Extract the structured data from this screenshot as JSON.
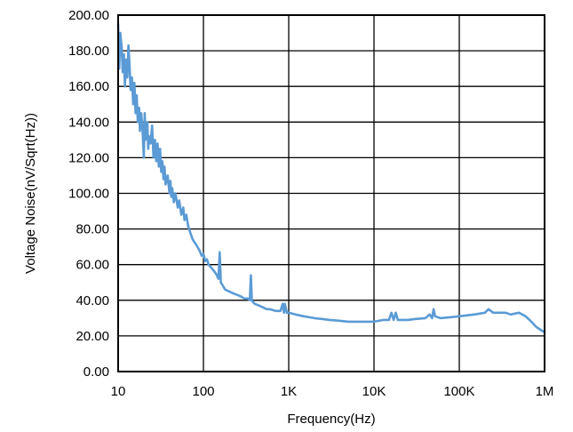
{
  "chart_data": {
    "type": "line",
    "title": "",
    "xlabel": "Frequency(Hz)",
    "ylabel": "Voltage Noise(nV/Sqrt(Hz))",
    "x_scale": "log",
    "xlim": [
      10,
      1000000
    ],
    "ylim": [
      0,
      200
    ],
    "grid": true,
    "legend": "none",
    "x_ticks": [
      {
        "value": 10,
        "label": "10"
      },
      {
        "value": 100,
        "label": "100"
      },
      {
        "value": 1000,
        "label": "1K"
      },
      {
        "value": 10000,
        "label": "10K"
      },
      {
        "value": 100000,
        "label": "100K"
      },
      {
        "value": 1000000,
        "label": "1M"
      }
    ],
    "y_ticks": [
      {
        "value": 0,
        "label": "0.00"
      },
      {
        "value": 20,
        "label": "20.00"
      },
      {
        "value": 40,
        "label": "40.00"
      },
      {
        "value": 60,
        "label": "60.00"
      },
      {
        "value": 80,
        "label": "80.00"
      },
      {
        "value": 100,
        "label": "100.00"
      },
      {
        "value": 120,
        "label": "120.00"
      },
      {
        "value": 140,
        "label": "140.00"
      },
      {
        "value": 160,
        "label": "160.00"
      },
      {
        "value": 180,
        "label": "180.00"
      },
      {
        "value": 200,
        "label": "200.00"
      }
    ],
    "series": [
      {
        "color": "#5b9bd5",
        "x": [
          10,
          10.3,
          10.6,
          11,
          11.3,
          11.7,
          12,
          12.4,
          12.8,
          13.2,
          13.6,
          14,
          14.5,
          15,
          15.5,
          16,
          16.5,
          17,
          17.6,
          18,
          18.6,
          19.2,
          20,
          20.5,
          21,
          22,
          22.5,
          23,
          24,
          25,
          26,
          27,
          28,
          29,
          30,
          31,
          32,
          33,
          34,
          35,
          36,
          38,
          40,
          41,
          42,
          43,
          45,
          47,
          50,
          52,
          55,
          58,
          60,
          63,
          66,
          70,
          75,
          80,
          85,
          90,
          95,
          100,
          105,
          110,
          115,
          120,
          130,
          140,
          150,
          155,
          160,
          170,
          180,
          200,
          220,
          250,
          280,
          300,
          330,
          350,
          360,
          370,
          380,
          400,
          450,
          500,
          550,
          600,
          700,
          800,
          850,
          880,
          900,
          950,
          1000,
          1200,
          1500,
          2000,
          2500,
          3000,
          4000,
          5000,
          7000,
          10000,
          13000,
          15000,
          16000,
          17000,
          18000,
          19000,
          20000,
          25000,
          30000,
          40000,
          45000,
          48000,
          50000,
          52000,
          60000,
          80000,
          100000,
          150000,
          200000,
          220000,
          250000,
          300000,
          350000,
          400000,
          500000,
          600000,
          700000,
          800000,
          1000000
        ],
        "y": [
          195,
          170,
          190,
          182,
          168,
          178,
          160,
          175,
          165,
          183,
          172,
          158,
          165,
          150,
          162,
          145,
          155,
          140,
          148,
          135,
          145,
          138,
          120,
          145,
          130,
          140,
          125,
          132,
          128,
          138,
          120,
          130,
          118,
          128,
          115,
          125,
          112,
          118,
          108,
          115,
          105,
          110,
          100,
          107,
          98,
          103,
          95,
          100,
          92,
          96,
          88,
          92,
          85,
          88,
          82,
          78,
          74,
          72,
          70,
          68,
          65,
          66,
          62,
          63,
          60,
          59,
          57,
          55,
          52,
          67,
          50,
          48,
          46,
          45,
          44,
          43,
          42,
          41,
          41,
          40,
          54,
          40,
          39,
          38,
          37,
          36,
          35,
          35,
          34,
          34,
          38,
          33,
          38,
          33,
          33,
          32,
          31,
          30,
          29.5,
          29,
          28.5,
          28,
          28,
          28,
          29,
          29,
          33,
          29,
          33,
          29,
          29,
          29,
          29.5,
          30,
          32,
          30,
          35,
          31,
          30,
          30.5,
          31,
          32,
          33,
          35,
          33,
          33,
          33,
          32,
          33,
          31,
          28,
          25,
          22
        ]
      }
    ]
  }
}
